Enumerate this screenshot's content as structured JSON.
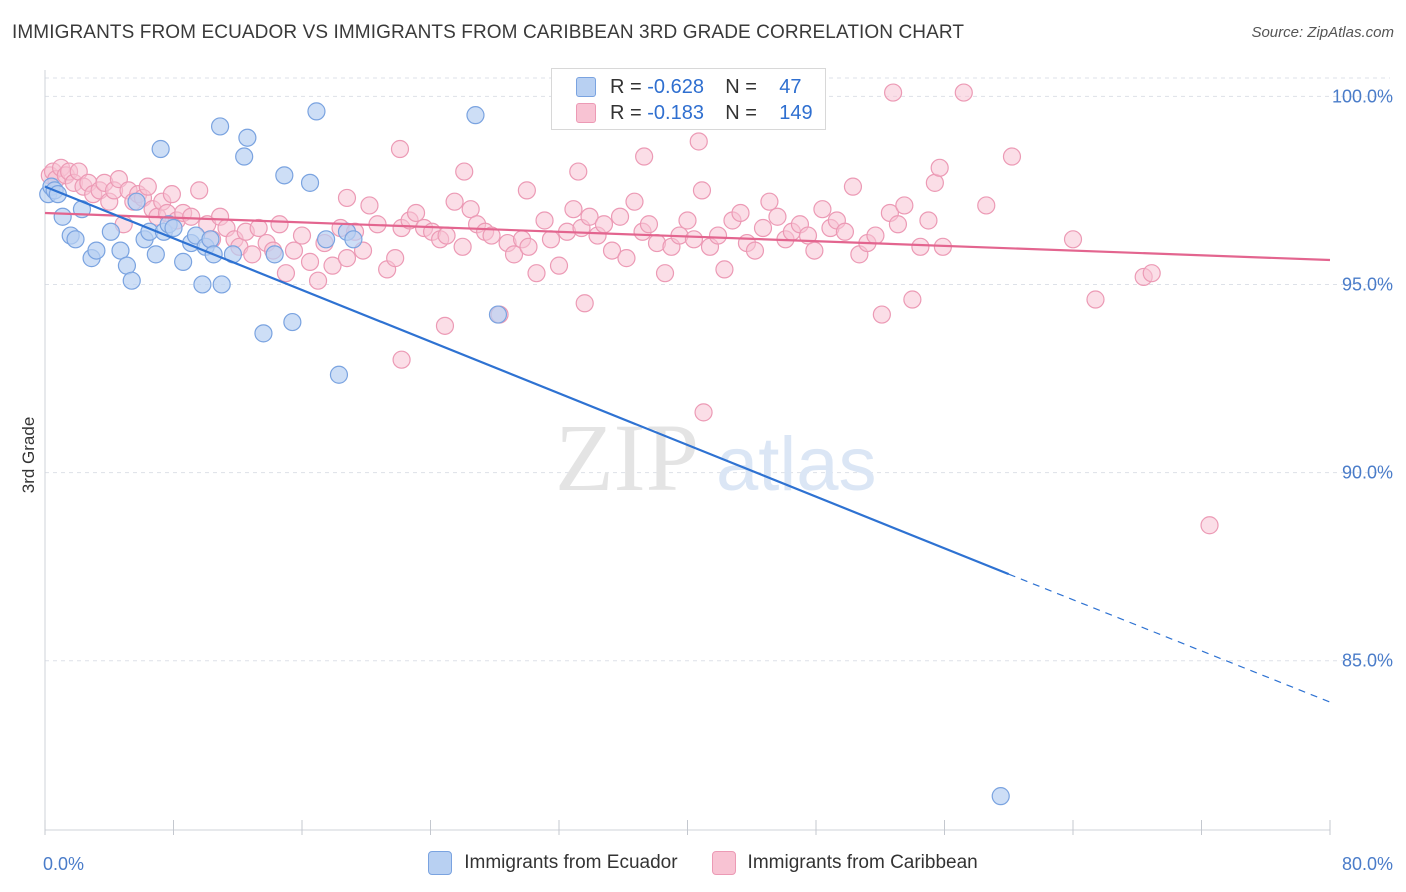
{
  "title": "IMMIGRANTS FROM ECUADOR VS IMMIGRANTS FROM CARIBBEAN 3RD GRADE CORRELATION CHART",
  "source": "Source: ZipAtlas.com",
  "watermark": {
    "zip": "ZIP",
    "atlas": "atlas"
  },
  "colors": {
    "ecuador_fill": "#b8d0f2",
    "ecuador_stroke": "#7aa3e0",
    "ecuador_line": "#2e72d2",
    "caribbean_fill": "#f8c3d3",
    "caribbean_stroke": "#ec9ab5",
    "caribbean_line": "#e3658f",
    "grid": "#dde1e8",
    "tick_text": "#4a7cc9"
  },
  "legend": {
    "r_label": "R =",
    "n_label": "N =",
    "rows": [
      {
        "r": "-0.628",
        "n": "47"
      },
      {
        "r": "-0.183",
        "n": "149"
      }
    ]
  },
  "chart_data": {
    "type": "scatter",
    "title": "IMMIGRANTS FROM ECUADOR VS IMMIGRANTS FROM CARIBBEAN 3RD GRADE CORRELATION CHART",
    "xlabel": "",
    "ylabel": "3rd Grade",
    "xlim": [
      0,
      80
    ],
    "ylim": [
      80.5,
      100.7
    ],
    "x_tick_labels": [
      "0.0%",
      "80.0%"
    ],
    "y_ticks": [
      85,
      90,
      95,
      100
    ],
    "y_tick_labels": [
      "85.0%",
      "90.0%",
      "95.0%",
      "100.0%"
    ],
    "series": [
      {
        "name": "Immigrants from Ecuador",
        "r": -0.628,
        "n": 47,
        "trend": {
          "x0": 0,
          "y0": 97.6,
          "x1": 60.0,
          "y1": 87.3,
          "dash_to_x": 80,
          "dash_to_y": 83.9
        },
        "points": [
          [
            0.2,
            97.4
          ],
          [
            0.4,
            97.6
          ],
          [
            0.6,
            97.5
          ],
          [
            0.8,
            97.4
          ],
          [
            1.1,
            96.8
          ],
          [
            1.6,
            96.3
          ],
          [
            1.9,
            96.2
          ],
          [
            2.3,
            97.0
          ],
          [
            2.9,
            95.7
          ],
          [
            3.2,
            95.9
          ],
          [
            4.1,
            96.4
          ],
          [
            4.7,
            95.9
          ],
          [
            5.1,
            95.5
          ],
          [
            5.4,
            95.1
          ],
          [
            5.7,
            97.2
          ],
          [
            6.2,
            96.2
          ],
          [
            6.5,
            96.4
          ],
          [
            6.9,
            95.8
          ],
          [
            7.4,
            96.4
          ],
          [
            7.7,
            96.6
          ],
          [
            7.2,
            98.6
          ],
          [
            8.6,
            95.6
          ],
          [
            9.1,
            96.1
          ],
          [
            9.4,
            96.3
          ],
          [
            8.0,
            96.5
          ],
          [
            10.0,
            96.0
          ],
          [
            10.3,
            96.2
          ],
          [
            10.5,
            95.8
          ],
          [
            9.8,
            95.0
          ],
          [
            11.0,
            95.0
          ],
          [
            11.7,
            95.8
          ],
          [
            10.9,
            99.2
          ],
          [
            12.4,
            98.4
          ],
          [
            12.6,
            98.9
          ],
          [
            13.6,
            93.7
          ],
          [
            14.9,
            97.9
          ],
          [
            14.3,
            95.8
          ],
          [
            15.4,
            94.0
          ],
          [
            16.5,
            97.7
          ],
          [
            16.9,
            99.6
          ],
          [
            17.5,
            96.2
          ],
          [
            18.3,
            92.6
          ],
          [
            18.8,
            96.4
          ],
          [
            19.2,
            96.2
          ],
          [
            26.8,
            99.5
          ],
          [
            28.2,
            94.2
          ],
          [
            59.5,
            81.4
          ]
        ]
      },
      {
        "name": "Immigrants from Caribbean",
        "r": -0.183,
        "n": 149,
        "trend": {
          "x0": 0,
          "y0": 96.9,
          "x1": 80,
          "y1": 95.65
        },
        "points": [
          [
            0.3,
            97.9
          ],
          [
            0.5,
            98.0
          ],
          [
            0.7,
            97.8
          ],
          [
            1.0,
            98.1
          ],
          [
            1.3,
            97.9
          ],
          [
            1.5,
            98.0
          ],
          [
            1.8,
            97.7
          ],
          [
            2.1,
            98.0
          ],
          [
            2.4,
            97.6
          ],
          [
            2.7,
            97.7
          ],
          [
            3.0,
            97.4
          ],
          [
            3.4,
            97.5
          ],
          [
            3.7,
            97.7
          ],
          [
            4.0,
            97.2
          ],
          [
            4.3,
            97.5
          ],
          [
            4.6,
            97.8
          ],
          [
            4.9,
            96.6
          ],
          [
            5.2,
            97.5
          ],
          [
            5.5,
            97.2
          ],
          [
            5.8,
            97.4
          ],
          [
            6.1,
            97.3
          ],
          [
            6.4,
            97.6
          ],
          [
            6.7,
            97.0
          ],
          [
            7.0,
            96.8
          ],
          [
            7.3,
            97.2
          ],
          [
            7.6,
            96.9
          ],
          [
            7.9,
            97.4
          ],
          [
            8.2,
            96.7
          ],
          [
            8.6,
            96.9
          ],
          [
            9.1,
            96.8
          ],
          [
            9.6,
            97.5
          ],
          [
            10.1,
            96.6
          ],
          [
            10.4,
            96.2
          ],
          [
            10.9,
            96.8
          ],
          [
            11.3,
            96.5
          ],
          [
            11.8,
            96.2
          ],
          [
            12.1,
            96.0
          ],
          [
            12.5,
            96.4
          ],
          [
            12.9,
            95.8
          ],
          [
            13.3,
            96.5
          ],
          [
            13.8,
            96.1
          ],
          [
            14.2,
            95.9
          ],
          [
            14.6,
            96.6
          ],
          [
            15.0,
            95.3
          ],
          [
            15.5,
            95.9
          ],
          [
            16.0,
            96.3
          ],
          [
            16.5,
            95.6
          ],
          [
            17.0,
            95.1
          ],
          [
            17.4,
            96.1
          ],
          [
            17.9,
            95.5
          ],
          [
            18.4,
            96.5
          ],
          [
            18.8,
            95.7
          ],
          [
            19.3,
            96.4
          ],
          [
            19.8,
            95.9
          ],
          [
            20.2,
            97.1
          ],
          [
            20.7,
            96.6
          ],
          [
            21.3,
            95.4
          ],
          [
            21.8,
            95.7
          ],
          [
            22.2,
            96.5
          ],
          [
            22.7,
            96.7
          ],
          [
            23.1,
            96.9
          ],
          [
            23.6,
            96.5
          ],
          [
            24.1,
            96.4
          ],
          [
            24.6,
            96.2
          ],
          [
            25.0,
            96.3
          ],
          [
            25.5,
            97.2
          ],
          [
            26.0,
            96.0
          ],
          [
            26.5,
            97.0
          ],
          [
            26.9,
            96.6
          ],
          [
            27.4,
            96.4
          ],
          [
            27.8,
            96.3
          ],
          [
            28.3,
            94.2
          ],
          [
            28.8,
            96.1
          ],
          [
            29.2,
            95.8
          ],
          [
            29.7,
            96.2
          ],
          [
            30.1,
            96.0
          ],
          [
            30.6,
            95.3
          ],
          [
            31.1,
            96.7
          ],
          [
            31.5,
            96.2
          ],
          [
            32.0,
            95.5
          ],
          [
            32.5,
            96.4
          ],
          [
            32.9,
            97.0
          ],
          [
            33.4,
            96.5
          ],
          [
            33.9,
            96.8
          ],
          [
            34.4,
            96.3
          ],
          [
            34.8,
            96.6
          ],
          [
            35.3,
            95.9
          ],
          [
            35.8,
            96.8
          ],
          [
            36.2,
            95.7
          ],
          [
            36.7,
            97.2
          ],
          [
            37.2,
            96.4
          ],
          [
            37.6,
            96.6
          ],
          [
            38.1,
            96.1
          ],
          [
            38.6,
            95.3
          ],
          [
            39.0,
            96.0
          ],
          [
            39.5,
            96.3
          ],
          [
            40.0,
            96.7
          ],
          [
            40.4,
            96.2
          ],
          [
            40.9,
            97.5
          ],
          [
            41.4,
            96.0
          ],
          [
            41.9,
            96.3
          ],
          [
            42.3,
            95.4
          ],
          [
            42.8,
            96.7
          ],
          [
            43.3,
            96.9
          ],
          [
            43.7,
            96.1
          ],
          [
            44.2,
            95.9
          ],
          [
            44.7,
            96.5
          ],
          [
            45.1,
            97.2
          ],
          [
            45.6,
            96.8
          ],
          [
            46.1,
            96.2
          ],
          [
            46.5,
            96.4
          ],
          [
            47.0,
            96.6
          ],
          [
            47.5,
            96.3
          ],
          [
            47.9,
            95.9
          ],
          [
            48.4,
            97.0
          ],
          [
            48.9,
            96.5
          ],
          [
            49.3,
            96.7
          ],
          [
            49.8,
            96.4
          ],
          [
            50.3,
            97.6
          ],
          [
            50.7,
            95.8
          ],
          [
            51.2,
            96.1
          ],
          [
            51.7,
            96.3
          ],
          [
            52.1,
            94.2
          ],
          [
            52.6,
            96.9
          ],
          [
            53.1,
            96.6
          ],
          [
            53.5,
            97.1
          ],
          [
            54.0,
            94.6
          ],
          [
            54.5,
            96.0
          ],
          [
            55.0,
            96.7
          ],
          [
            55.4,
            97.7
          ],
          [
            55.9,
            96.0
          ],
          [
            22.1,
            98.6
          ],
          [
            26.1,
            98.0
          ],
          [
            30.0,
            97.5
          ],
          [
            33.2,
            98.0
          ],
          [
            37.3,
            98.4
          ],
          [
            40.7,
            98.8
          ],
          [
            44.9,
            99.6
          ],
          [
            52.8,
            100.1
          ],
          [
            57.2,
            100.1
          ],
          [
            55.7,
            98.1
          ],
          [
            58.6,
            97.1
          ],
          [
            60.2,
            98.4
          ],
          [
            64.0,
            96.2
          ],
          [
            65.4,
            94.6
          ],
          [
            68.4,
            95.2
          ],
          [
            68.9,
            95.3
          ],
          [
            72.5,
            88.6
          ],
          [
            41.0,
            91.6
          ],
          [
            22.2,
            93.0
          ],
          [
            18.8,
            97.3
          ],
          [
            24.9,
            93.9
          ],
          [
            33.6,
            94.5
          ]
        ]
      }
    ]
  },
  "bottom_legend": [
    "Immigrants from Ecuador",
    "Immigrants from Caribbean"
  ]
}
